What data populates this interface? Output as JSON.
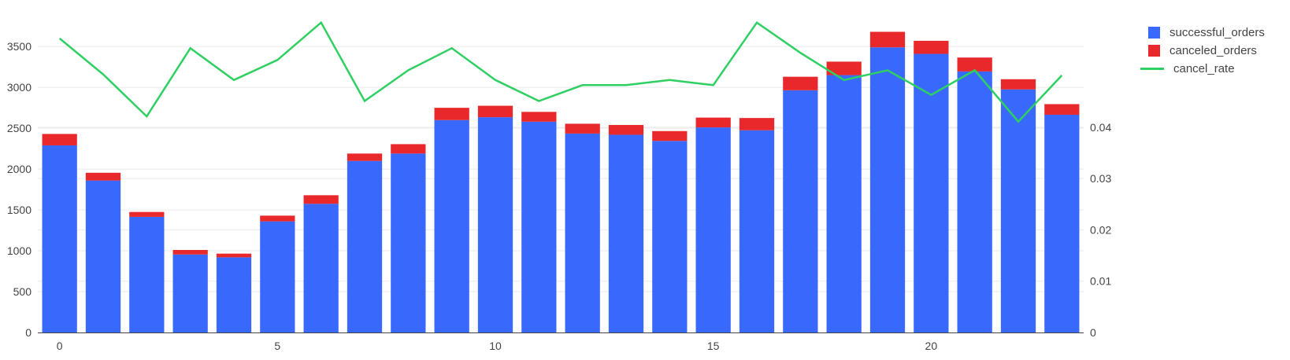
{
  "colors": {
    "successful": "#3869fc",
    "canceled": "#e8282a",
    "line": "#2fd062",
    "grid": "#eaeaea",
    "axis": "#444444"
  },
  "legend": [
    {
      "label": "successful_orders",
      "kind": "box",
      "color": "#3869fc"
    },
    {
      "label": "canceled_orders",
      "kind": "box",
      "color": "#e8282a"
    },
    {
      "label": "cancel_rate",
      "kind": "line",
      "color": "#2fd062"
    }
  ],
  "chart_data": {
    "type": "bar",
    "stacked": true,
    "secondary_line": true,
    "x": [
      0,
      1,
      2,
      3,
      4,
      5,
      6,
      7,
      8,
      9,
      10,
      11,
      12,
      13,
      14,
      15,
      16,
      17,
      18,
      19,
      20,
      21,
      22,
      23
    ],
    "series": [
      {
        "name": "successful_orders",
        "type": "bar",
        "axis": "y",
        "values": [
          2290,
          1860,
          1415,
          955,
          920,
          1360,
          1575,
          2100,
          2190,
          2600,
          2635,
          2580,
          2435,
          2420,
          2345,
          2510,
          2475,
          2965,
          3150,
          3490,
          3410,
          3195,
          2975,
          2665
        ]
      },
      {
        "name": "canceled_orders",
        "type": "bar",
        "axis": "y",
        "values": [
          140,
          95,
          60,
          55,
          45,
          70,
          105,
          90,
          115,
          150,
          140,
          120,
          120,
          120,
          120,
          120,
          150,
          165,
          165,
          190,
          160,
          170,
          125,
          130
        ]
      },
      {
        "name": "cancel_rate",
        "type": "line",
        "axis": "y2",
        "values": [
          0.0573,
          0.0503,
          0.0421,
          0.0554,
          0.0492,
          0.0531,
          0.0604,
          0.0451,
          0.0511,
          0.0554,
          0.0492,
          0.0451,
          0.0482,
          0.0482,
          0.0492,
          0.0482,
          0.0604,
          0.0545,
          0.0492,
          0.0511,
          0.0463,
          0.0511,
          0.0411,
          0.0501
        ]
      }
    ],
    "xticks": [
      0,
      5,
      10,
      15,
      20
    ],
    "yticks": [
      0,
      500,
      1000,
      1500,
      2000,
      2500,
      3000,
      3500
    ],
    "y2ticks": [
      0,
      0.01,
      0.02,
      0.03,
      0.04
    ],
    "y2ticklabels": [
      "0",
      "0.01",
      "0.02",
      "0.03",
      "0.04"
    ],
    "xlim": [
      -0.5,
      23.5
    ],
    "ylim": [
      0,
      3800
    ],
    "y2lim": [
      0,
      0.0605
    ],
    "grid": true,
    "legend_position": "top-right"
  }
}
